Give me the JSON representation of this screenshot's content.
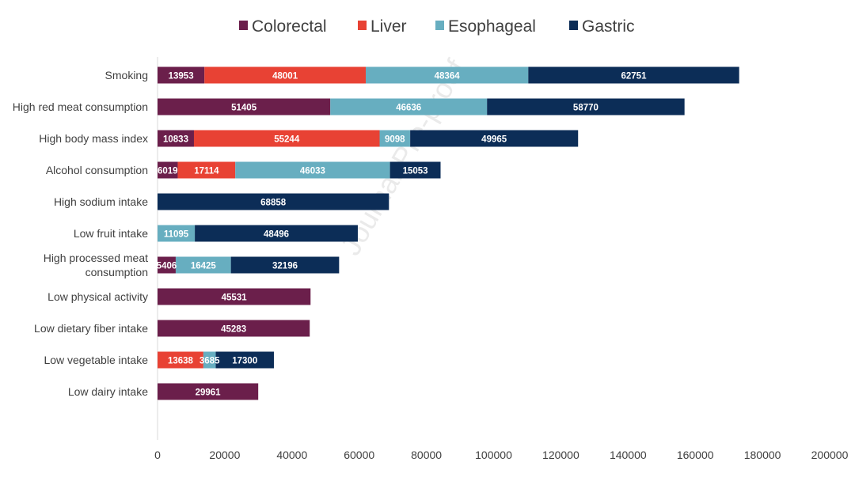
{
  "chart_data": {
    "type": "bar",
    "orientation": "horizontal",
    "stacked": true,
    "title": "",
    "xlabel": "",
    "ylabel": "",
    "xlim": [
      0,
      200000
    ],
    "xticks": [
      0,
      20000,
      40000,
      60000,
      80000,
      100000,
      120000,
      140000,
      160000,
      180000,
      200000
    ],
    "grid": false,
    "legend_position": "top",
    "categories": [
      [
        "Smoking"
      ],
      [
        "High red meat consumption"
      ],
      [
        "High body mass index"
      ],
      [
        "Alcohol consumption"
      ],
      [
        "High sodium intake"
      ],
      [
        "Low fruit intake"
      ],
      [
        "High processed meat",
        "consumption"
      ],
      [
        "Low physical activity"
      ],
      [
        "Low dietary fiber intake"
      ],
      [
        "Low vegetable intake"
      ],
      [
        "Low dairy intake"
      ]
    ],
    "series": [
      {
        "name": "Colorectal",
        "color": "#6b1f4b",
        "values": [
          13953,
          51405,
          10833,
          6019,
          null,
          null,
          5406,
          45531,
          45283,
          null,
          29961
        ]
      },
      {
        "name": "Liver",
        "color": "#e84234",
        "values": [
          48001,
          null,
          55244,
          17114,
          null,
          null,
          null,
          null,
          null,
          13638,
          null
        ]
      },
      {
        "name": "Esophageal",
        "color": "#67aec0",
        "values": [
          48364,
          46636,
          9098,
          46033,
          null,
          11095,
          16425,
          null,
          null,
          3685,
          null
        ]
      },
      {
        "name": "Gastric",
        "color": "#0c2d57",
        "values": [
          62751,
          58770,
          49965,
          15053,
          68858,
          48496,
          32196,
          null,
          null,
          17300,
          null
        ]
      }
    ],
    "watermark": "Journal Pre-proof"
  }
}
